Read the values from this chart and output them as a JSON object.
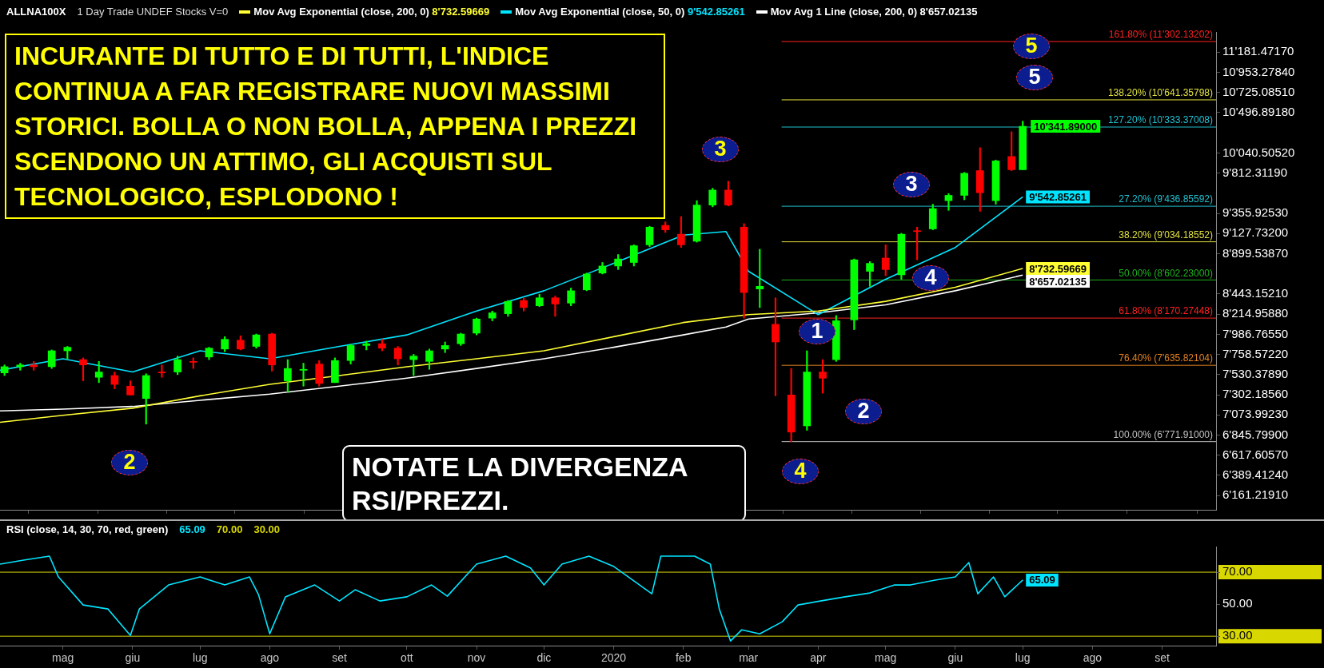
{
  "chart_data": [
    {
      "type": "candlestick",
      "title": "ALLNA100X",
      "subtitle": "1 Day   Trade UNDEF   Stocks V=0",
      "legend": "top",
      "marker": "none",
      "tick_labels": "y",
      "x": [
        "2019-04-05",
        "2019-04-12",
        "2019-04-18",
        "2019-04-26",
        "2019-05-03",
        "2019-05-10",
        "2019-05-17",
        "2019-05-24",
        "2019-05-31",
        "2019-06-07",
        "2019-06-14",
        "2019-06-21",
        "2019-06-28",
        "2019-07-05",
        "2019-07-12",
        "2019-07-19",
        "2019-07-26",
        "2019-08-02",
        "2019-08-09",
        "2019-08-16",
        "2019-08-23",
        "2019-08-30",
        "2019-09-06",
        "2019-09-13",
        "2019-09-20",
        "2019-09-27",
        "2019-10-04",
        "2019-10-11",
        "2019-10-18",
        "2019-10-25",
        "2019-11-01",
        "2019-11-08",
        "2019-11-15",
        "2019-11-22",
        "2019-11-29",
        "2019-12-06",
        "2019-12-13",
        "2019-12-20",
        "2019-12-27",
        "2020-01-03",
        "2020-01-10",
        "2020-01-17",
        "2020-01-24",
        "2020-01-31",
        "2020-02-07",
        "2020-02-14",
        "2020-02-21",
        "2020-02-28",
        "2020-03-06",
        "2020-03-13",
        "2020-03-20",
        "2020-03-27",
        "2020-04-03",
        "2020-04-09",
        "2020-04-17",
        "2020-04-24",
        "2020-05-01",
        "2020-05-08",
        "2020-05-15",
        "2020-05-22",
        "2020-05-29",
        "2020-06-05",
        "2020-06-12",
        "2020-06-19",
        "2020-06-26",
        "2020-07-01"
      ],
      "ohlc": [
        [
          7550,
          7640,
          7520,
          7620
        ],
        [
          7620,
          7660,
          7580,
          7640
        ],
        [
          7640,
          7680,
          7580,
          7620
        ],
        [
          7620,
          7810,
          7600,
          7800
        ],
        [
          7800,
          7850,
          7710,
          7840
        ],
        [
          7700,
          7720,
          7460,
          7640
        ],
        [
          7500,
          7680,
          7440,
          7560
        ],
        [
          7520,
          7560,
          7370,
          7420
        ],
        [
          7400,
          7460,
          7300,
          7300
        ],
        [
          7260,
          7540,
          6970,
          7520
        ],
        [
          7560,
          7640,
          7500,
          7550
        ],
        [
          7560,
          7740,
          7530,
          7700
        ],
        [
          7680,
          7720,
          7600,
          7670
        ],
        [
          7730,
          7840,
          7700,
          7830
        ],
        [
          7820,
          7960,
          7790,
          7930
        ],
        [
          7920,
          7970,
          7810,
          7820
        ],
        [
          7850,
          7990,
          7830,
          7980
        ],
        [
          7990,
          8000,
          7570,
          7640
        ],
        [
          7460,
          7700,
          7330,
          7600
        ],
        [
          7580,
          7660,
          7400,
          7590
        ],
        [
          7650,
          7690,
          7400,
          7430
        ],
        [
          7440,
          7720,
          7440,
          7690
        ],
        [
          7690,
          7870,
          7650,
          7860
        ],
        [
          7860,
          7910,
          7810,
          7880
        ],
        [
          7880,
          7930,
          7800,
          7830
        ],
        [
          7830,
          7850,
          7640,
          7710
        ],
        [
          7700,
          7760,
          7520,
          7740
        ],
        [
          7680,
          7820,
          7590,
          7800
        ],
        [
          7820,
          7900,
          7780,
          7860
        ],
        [
          7880,
          8000,
          7860,
          7990
        ],
        [
          8000,
          8170,
          7980,
          8160
        ],
        [
          8170,
          8250,
          8140,
          8230
        ],
        [
          8220,
          8370,
          8190,
          8360
        ],
        [
          8370,
          8400,
          8250,
          8290
        ],
        [
          8310,
          8440,
          8300,
          8400
        ],
        [
          8400,
          8420,
          8190,
          8330
        ],
        [
          8340,
          8510,
          8310,
          8480
        ],
        [
          8490,
          8680,
          8480,
          8670
        ],
        [
          8680,
          8800,
          8670,
          8760
        ],
        [
          8760,
          8890,
          8720,
          8840
        ],
        [
          8800,
          9000,
          8760,
          8990
        ],
        [
          9000,
          9210,
          8980,
          9200
        ],
        [
          9220,
          9260,
          9140,
          9170
        ],
        [
          9120,
          9320,
          8970,
          9000
        ],
        [
          9040,
          9500,
          9030,
          9450
        ],
        [
          9450,
          9640,
          9430,
          9620
        ],
        [
          9620,
          9720,
          9440,
          9450
        ],
        [
          9200,
          9240,
          8170,
          8460
        ],
        [
          8500,
          8950,
          8290,
          8530
        ],
        [
          8100,
          8400,
          7290,
          7900
        ],
        [
          7300,
          7600,
          6770,
          6880
        ],
        [
          6950,
          7800,
          6900,
          7560
        ],
        [
          7560,
          7700,
          7320,
          7490
        ],
        [
          7700,
          8200,
          7680,
          8140
        ],
        [
          8150,
          8840,
          8040,
          8830
        ],
        [
          8700,
          8810,
          8530,
          8790
        ],
        [
          8850,
          9000,
          8650,
          8720
        ],
        [
          8660,
          9130,
          8610,
          9120
        ],
        [
          9160,
          9200,
          8830,
          9150
        ],
        [
          9180,
          9460,
          9170,
          9410
        ],
        [
          9500,
          9580,
          9390,
          9560
        ],
        [
          9560,
          9820,
          9510,
          9810
        ],
        [
          9840,
          10100,
          9380,
          9590
        ],
        [
          9500,
          9960,
          9460,
          9950
        ],
        [
          10000,
          10280,
          9840,
          9850
        ],
        [
          9850,
          10400,
          9850,
          10341.89
        ]
      ],
      "colors": [
        "#00ff00",
        "#00ff00",
        "#ff0000",
        "#00ff00",
        "#00ff00",
        "#ff0000",
        "#00ff00",
        "#ff0000",
        "#ff0000",
        "#00ff00",
        "#ff0000",
        "#00ff00",
        "#ff0000",
        "#00ff00",
        "#00ff00",
        "#ff0000",
        "#00ff00",
        "#ff0000",
        "#00ff00",
        "#00ff00",
        "#ff0000",
        "#00ff00",
        "#00ff00",
        "#00ff00",
        "#ff0000",
        "#ff0000",
        "#00ff00",
        "#00ff00",
        "#00ff00",
        "#00ff00",
        "#00ff00",
        "#00ff00",
        "#00ff00",
        "#ff0000",
        "#00ff00",
        "#ff0000",
        "#00ff00",
        "#00ff00",
        "#00ff00",
        "#00ff00",
        "#00ff00",
        "#00ff00",
        "#ff0000",
        "#ff0000",
        "#00ff00",
        "#00ff00",
        "#ff0000",
        "#ff0000",
        "#00ff00",
        "#ff0000",
        "#ff0000",
        "#00ff00",
        "#ff0000",
        "#00ff00",
        "#00ff00",
        "#00ff00",
        "#ff0000",
        "#00ff00",
        "#ff0000",
        "#00ff00",
        "#00ff00",
        "#00ff00",
        "#ff0000",
        "#00ff00",
        "#ff0000",
        "#00ff00"
      ],
      "series": [
        {
          "type": "line",
          "name": "Mov Avg Exponential (close, 200, 0)",
          "color": "#ffff33",
          "x": [
            "2019-04-03",
            "2019-05-01",
            "2019-06-01",
            "2019-07-01",
            "2019-08-01",
            "2019-09-01",
            "2019-10-01",
            "2019-11-01",
            "2019-12-01",
            "2020-01-01",
            "2020-02-01",
            "2020-02-20",
            "2020-03-01",
            "2020-04-01",
            "2020-05-01",
            "2020-06-01",
            "2020-07-01"
          ],
          "values": [
            6990,
            7070,
            7150,
            7290,
            7420,
            7520,
            7620,
            7710,
            7800,
            7960,
            8120,
            8180,
            8210,
            8250,
            8360,
            8520,
            8732.59669
          ],
          "value_labels": [
            null,
            null,
            null,
            null,
            null,
            null,
            null,
            null,
            null,
            null,
            null,
            null,
            null,
            null,
            null,
            null,
            "8'732.59669"
          ]
        },
        {
          "type": "line",
          "name": "Mov Avg Exponential (close, 50, 0)",
          "color": "#00e5ff",
          "x": [
            "2019-04-03",
            "2019-05-01",
            "2019-06-01",
            "2019-07-01",
            "2019-08-01",
            "2019-09-01",
            "2019-10-01",
            "2019-11-01",
            "2019-12-01",
            "2020-01-01",
            "2020-02-01",
            "2020-02-20",
            "2020-03-01",
            "2020-04-01",
            "2020-05-01",
            "2020-06-01",
            "2020-07-01"
          ],
          "values": [
            7580,
            7710,
            7560,
            7800,
            7710,
            7850,
            7980,
            8250,
            8480,
            8790,
            9110,
            9150,
            8700,
            8210,
            8610,
            8970,
            9542.85261
          ],
          "value_labels": [
            null,
            null,
            null,
            null,
            null,
            null,
            null,
            null,
            null,
            null,
            null,
            null,
            null,
            null,
            null,
            null,
            "9'542.85261"
          ]
        },
        {
          "type": "line",
          "name": "Mov Avg 1 Line (close, 200, 0)",
          "color": "#ffffff",
          "x": [
            "2019-04-03",
            "2019-05-01",
            "2019-06-01",
            "2019-07-01",
            "2019-08-01",
            "2019-09-01",
            "2019-10-01",
            "2019-11-01",
            "2019-12-01",
            "2020-01-01",
            "2020-02-01",
            "2020-02-20",
            "2020-03-01",
            "2020-04-01",
            "2020-05-01",
            "2020-06-01",
            "2020-07-01"
          ],
          "values": [
            7120,
            7140,
            7170,
            7240,
            7310,
            7400,
            7490,
            7600,
            7710,
            7840,
            7980,
            8070,
            8160,
            8230,
            8320,
            8480,
            8657.02135
          ],
          "value_labels": [
            null,
            null,
            null,
            null,
            null,
            null,
            null,
            null,
            null,
            null,
            null,
            null,
            null,
            null,
            null,
            null,
            "8'657.02135"
          ]
        }
      ],
      "xlim": [
        "2019-04-03",
        "2020-09-25"
      ],
      "xticks": [
        {
          "value": "2019-05-01",
          "label": null
        },
        {
          "value": "2019-06-01",
          "label": null
        },
        {
          "value": "2019-07-01",
          "label": null
        },
        {
          "value": "2019-08-01",
          "label": null
        },
        {
          "value": "2019-09-01",
          "label": null
        },
        {
          "value": "2019-10-01",
          "label": null
        },
        {
          "value": "2019-11-01",
          "label": null
        },
        {
          "value": "2019-12-01",
          "label": null
        },
        {
          "value": "2020-01-01",
          "label": null
        },
        {
          "value": "2020-02-01",
          "label": null
        },
        {
          "value": "2020-03-01",
          "label": null
        },
        {
          "value": "2020-04-01",
          "label": null
        },
        {
          "value": "2020-05-01",
          "label": null
        },
        {
          "value": "2020-06-01",
          "label": null
        },
        {
          "value": "2020-07-01",
          "label": null
        },
        {
          "value": "2020-08-01",
          "label": null
        },
        {
          "value": "2020-09-01",
          "label": null
        }
      ],
      "ylim": [
        6000,
        11410
      ],
      "yticks": [
        {
          "value": 11181.4717,
          "label": "11'181.47170"
        },
        {
          "value": 10953.2784,
          "label": "10'953.27840"
        },
        {
          "value": 10725.0851,
          "label": "10'725.08510"
        },
        {
          "value": 10496.8918,
          "label": "10'496.89180"
        },
        {
          "value": 10040.5052,
          "label": "10'040.50520"
        },
        {
          "value": 9812.3119,
          "label": "9'812.31190"
        },
        {
          "value": 9355.9253,
          "label": "9'355.92530"
        },
        {
          "value": 9127.732,
          "label": "9'127.73200"
        },
        {
          "value": 8899.5387,
          "label": "8'899.53870"
        },
        {
          "value": 8443.1521,
          "label": "8'443.15210"
        },
        {
          "value": 8214.9588,
          "label": "8'214.95880"
        },
        {
          "value": 7986.7655,
          "label": "7'986.76550"
        },
        {
          "value": 7758.5722,
          "label": "7'758.57220"
        },
        {
          "value": 7530.3789,
          "label": "7'530.37890"
        },
        {
          "value": 7302.1856,
          "label": "7'302.18560"
        },
        {
          "value": 7073.9923,
          "label": "7'073.99230"
        },
        {
          "value": 6845.799,
          "label": "6'845.79900"
        },
        {
          "value": 6617.6057,
          "label": "6'617.60570"
        },
        {
          "value": 6389.4124,
          "label": "6'389.41240"
        },
        {
          "value": 6161.2191,
          "label": "6'161.21910"
        }
      ],
      "ref_lines": [
        {
          "axis": "y",
          "value": 11302.13202,
          "label": "161.80% (11'302.13202)",
          "color": "#ff2020"
        },
        {
          "axis": "y",
          "value": 10641.35798,
          "label": "138.20% (10'641.35798)",
          "color": "#e0e040"
        },
        {
          "axis": "y",
          "value": 10333.37008,
          "label": "127.20% (10'333.37008)",
          "color": "#20c0d0"
        },
        {
          "axis": "y",
          "value": 9436.85592,
          "label": "27.20% (9'436.85592)",
          "color": "#20c0d0"
        },
        {
          "axis": "y",
          "value": 9034.18552,
          "label": "38.20% (9'034.18552)",
          "color": "#e0e040"
        },
        {
          "axis": "y",
          "value": 8602.23,
          "label": "50.00% (8'602.23000)",
          "color": "#20b020"
        },
        {
          "axis": "y",
          "value": 8170.27448,
          "label": "61.80% (8'170.27448)",
          "color": "#ff2020"
        },
        {
          "axis": "y",
          "value": 7635.82104,
          "label": "76.40% (7'635.82104)",
          "color": "#e08020"
        },
        {
          "axis": "y",
          "value": 6771.91,
          "label": "100.00% (6'771.91000)",
          "color": "#c0c0c0"
        }
      ],
      "annotations": [
        "INCURANTE DI TUTTO E DI TUTTI, L'INDICE CONTINUA A FAR REGISTRARE NUOVI MASSIMI STORICI. BOLLA O NON BOLLA, APPENA I PREZZI SCENDONO UN ATTIMO, GLI ACQUISTI SUL TECNOLOGICO, ESPLODONO !",
        "NOTATE LA DIVERGENZA RSI/PREZZI.",
        {
          "text": "10'341.89000",
          "x": "2020-07-01",
          "y": 10341.89
        },
        "2",
        "3",
        "4",
        "5",
        "1",
        "2",
        "3",
        "4",
        "5"
      ]
    },
    {
      "type": "line",
      "title": "RSI (close, 14, 30, 70, red, green)",
      "legend": "top",
      "marker": "none",
      "x": [
        "2019-04-03",
        "2019-04-14",
        "2019-04-25",
        "2019-04-29",
        "2019-05-10",
        "2019-05-21",
        "2019-05-31",
        "2019-06-04",
        "2019-06-17",
        "2019-07-01",
        "2019-07-12",
        "2019-07-23",
        "2019-07-27",
        "2019-08-01",
        "2019-08-08",
        "2019-08-21",
        "2019-09-01",
        "2019-09-08",
        "2019-09-19",
        "2019-10-01",
        "2019-10-12",
        "2019-10-19",
        "2019-11-01",
        "2019-11-14",
        "2019-11-25",
        "2019-12-01",
        "2019-12-09",
        "2019-12-21",
        "2020-01-01",
        "2020-01-18",
        "2020-01-22",
        "2020-02-06",
        "2020-02-13",
        "2020-02-17",
        "2020-02-22",
        "2020-02-27",
        "2020-03-06",
        "2020-03-16",
        "2020-03-23",
        "2020-04-02",
        "2020-04-13",
        "2020-04-24",
        "2020-05-05",
        "2020-05-12",
        "2020-05-23",
        "2020-06-01",
        "2020-06-07",
        "2020-06-11",
        "2020-06-18",
        "2020-06-23",
        "2020-07-01"
      ],
      "series": [
        {
          "color": "#00e5ff",
          "values": [
            75,
            77.6,
            80,
            67,
            49.5,
            47,
            30.5,
            47,
            62,
            67,
            62,
            67,
            56,
            31.5,
            54.6,
            62,
            52,
            59,
            52,
            54.6,
            62,
            55,
            75,
            80,
            72.6,
            62,
            75,
            80,
            73.6,
            56.5,
            80,
            80,
            75,
            47,
            27,
            34,
            31.5,
            39,
            49.5,
            52,
            54.6,
            57,
            62,
            62,
            65,
            67,
            76,
            56.5,
            67,
            54.6,
            65.09
          ],
          "value_labels": [
            null,
            null,
            null,
            null,
            null,
            null,
            null,
            null,
            null,
            null,
            null,
            null,
            null,
            null,
            null,
            null,
            null,
            null,
            null,
            null,
            null,
            null,
            null,
            null,
            null,
            null,
            null,
            null,
            null,
            null,
            null,
            null,
            null,
            null,
            null,
            null,
            null,
            null,
            null,
            null,
            null,
            null,
            null,
            null,
            null,
            null,
            null,
            null,
            null,
            null,
            "65.09"
          ]
        }
      ],
      "xlim": [
        "2019-04-03",
        "2020-09-25"
      ],
      "xticks": [
        {
          "value": "2019-05-01",
          "label": "mag"
        },
        {
          "value": "2019-06-01",
          "label": "giu"
        },
        {
          "value": "2019-07-01",
          "label": "lug"
        },
        {
          "value": "2019-08-01",
          "label": "ago"
        },
        {
          "value": "2019-09-01",
          "label": "set"
        },
        {
          "value": "2019-10-01",
          "label": "ott"
        },
        {
          "value": "2019-11-01",
          "label": "nov"
        },
        {
          "value": "2019-12-01",
          "label": "dic"
        },
        {
          "value": "2020-01-01",
          "label": "2020"
        },
        {
          "value": "2020-02-01",
          "label": "feb"
        },
        {
          "value": "2020-03-01",
          "label": "mar"
        },
        {
          "value": "2020-04-01",
          "label": "apr"
        },
        {
          "value": "2020-05-01",
          "label": "mag"
        },
        {
          "value": "2020-06-01",
          "label": "giu"
        },
        {
          "value": "2020-07-01",
          "label": "lug"
        },
        {
          "value": "2020-08-01",
          "label": "ago"
        },
        {
          "value": "2020-09-01",
          "label": "set"
        }
      ],
      "ylim": [
        24,
        86
      ],
      "yticks": [
        {
          "value": 70,
          "label": "70.00"
        },
        {
          "value": 50,
          "label": "50.00"
        },
        {
          "value": 30,
          "label": "30.00"
        }
      ],
      "ref_lines": [
        {
          "axis": "y",
          "value": 70,
          "label": "70.00",
          "color": "#d8d800"
        },
        {
          "axis": "y",
          "value": 30,
          "label": "30.00",
          "color": "#d8d800"
        }
      ]
    }
  ]
}
